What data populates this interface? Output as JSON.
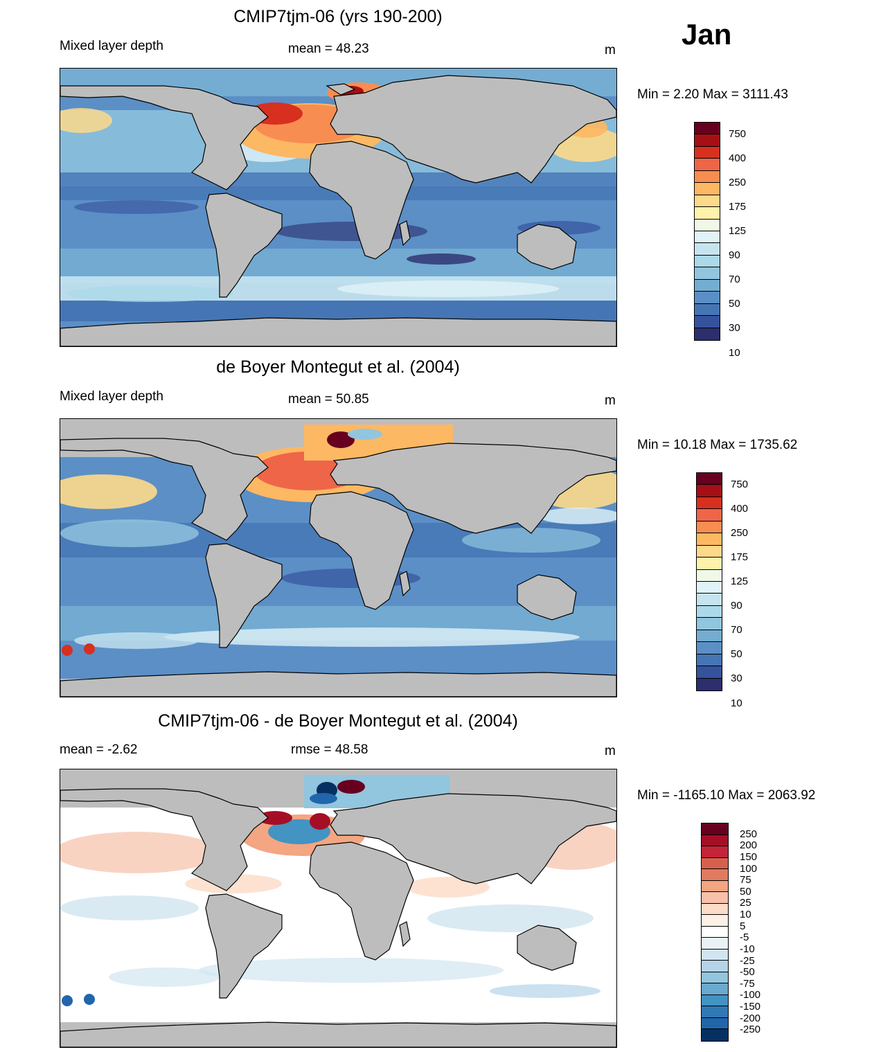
{
  "header": {
    "month": "Jan"
  },
  "panels": [
    {
      "id": "model",
      "title": "CMIP7tjm-06 (yrs 190-200)",
      "left_label": "Mixed layer depth",
      "center_label": "mean =  48.23",
      "units": "m",
      "minmax": "Min =   2.20 Max = 3111.43"
    },
    {
      "id": "obs",
      "title": "de Boyer Montegut et al. (2004)",
      "left_label": "Mixed layer depth",
      "center_label": "mean =  50.85",
      "units": "m",
      "minmax": "Min =  10.18 Max = 1735.62"
    },
    {
      "id": "diff",
      "title": "CMIP7tjm-06 - de Boyer Montegut et al. (2004)",
      "left_label": "mean =  -2.62",
      "center_label": "rmse =  48.58",
      "units": "m",
      "minmax": "Min = -1165.10 Max = 2063.92"
    }
  ],
  "colorbars": {
    "depth": {
      "labels": [
        "750",
        "400",
        "250",
        "175",
        "125",
        "90",
        "70",
        "50",
        "30",
        "10"
      ],
      "colors": [
        "#67001f",
        "#a50f15",
        "#d7301f",
        "#ef6548",
        "#f88d52",
        "#fdb863",
        "#fdd98a",
        "#fff2aa",
        "#f0f9e8",
        "#e0f3f8",
        "#c6e4ef",
        "#abd9e9",
        "#92c5de",
        "#74add1",
        "#5b8fc6",
        "#4575b4",
        "#35529c",
        "#2c2e6e"
      ]
    },
    "diff": {
      "labels": [
        "250",
        "200",
        "150",
        "100",
        "75",
        "50",
        "25",
        "10",
        "5",
        "-5",
        "-10",
        "-25",
        "-50",
        "-75",
        "-100",
        "-150",
        "-200",
        "-250"
      ],
      "colors": [
        "#67001f",
        "#a50f26",
        "#c4243a",
        "#d6604d",
        "#e07b62",
        "#f4a582",
        "#f7c0a8",
        "#fddbc7",
        "#fff0e6",
        "#ffffff",
        "#eaf2f8",
        "#d1e5f0",
        "#b5d4e9",
        "#92c5de",
        "#6aa9d0",
        "#4393c3",
        "#2f79b5",
        "#2166ac",
        "#053061"
      ]
    }
  }
}
